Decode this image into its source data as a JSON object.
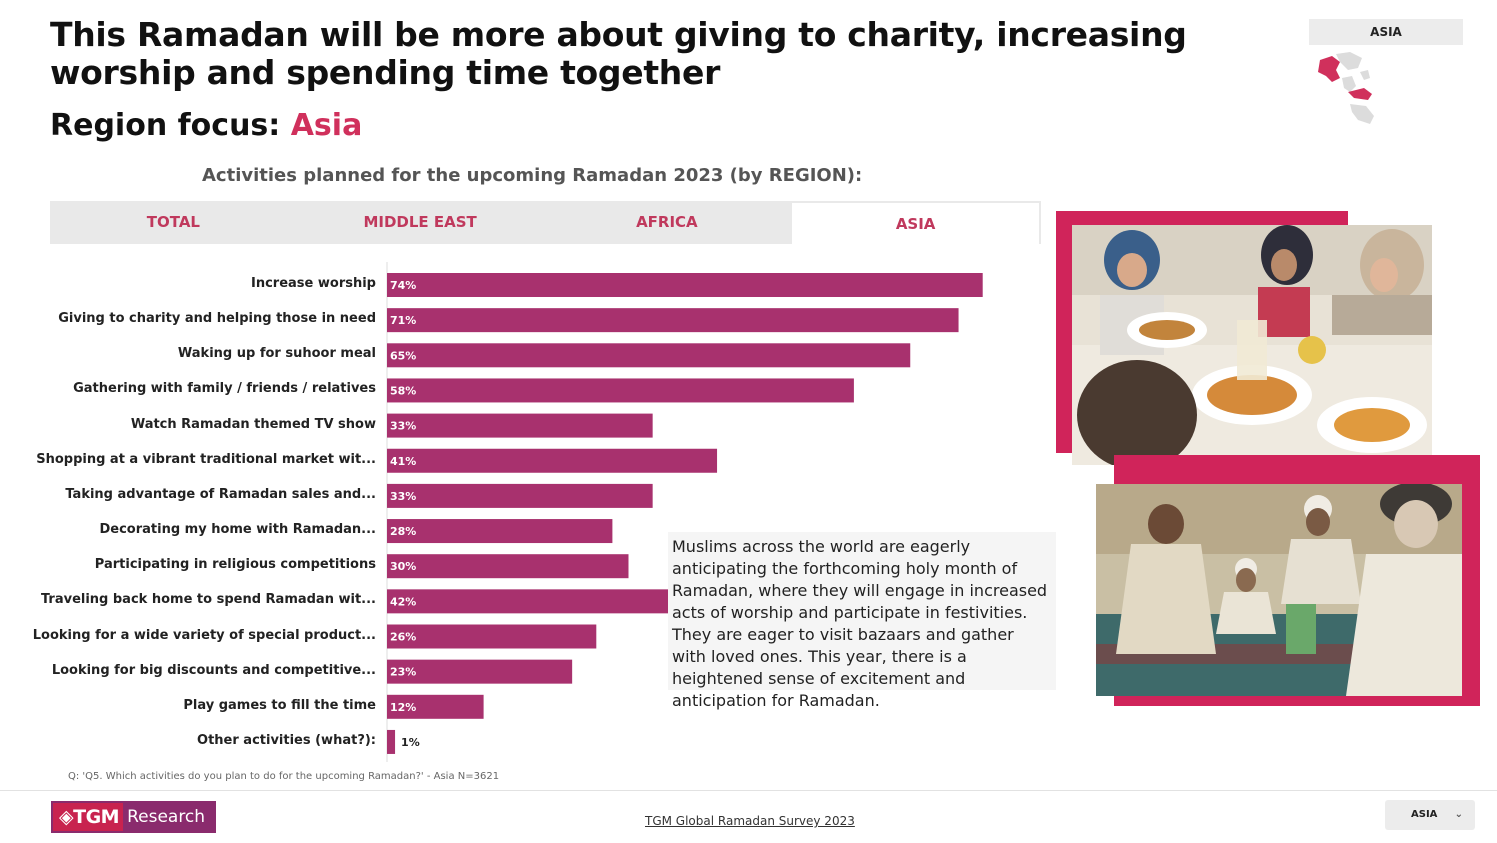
{
  "header": {
    "title": "This Ramadan will be more about giving to charity, increasing worship and spending time together",
    "region_label": "Region focus: ",
    "region_name": "Asia",
    "region_badge": "ASIA"
  },
  "chart_heading": "Activities planned for the upcoming Ramadan 2023 (by REGION):",
  "tabs": [
    {
      "label": "TOTAL",
      "active": false
    },
    {
      "label": "MIDDLE EAST",
      "active": false
    },
    {
      "label": "AFRICA",
      "active": false
    },
    {
      "label": "ASIA",
      "active": true
    }
  ],
  "chart_data": {
    "type": "bar",
    "orientation": "horizontal",
    "categories": [
      "Increase worship",
      "Giving to charity and helping those in need",
      "Waking up for suhoor meal",
      "Gathering with family / friends / relatives",
      "Watch Ramadan themed TV show",
      "Shopping at a vibrant traditional market wit...",
      "Taking advantage of Ramadan sales and...",
      "Decorating my home with Ramadan...",
      "Participating in religious competitions",
      "Traveling back home to spend Ramadan wit...",
      "Looking for a wide variety of special product...",
      "Looking for big discounts and competitive...",
      "Play games to fill the time",
      "Other activities (what?):"
    ],
    "values": [
      74,
      71,
      65,
      58,
      33,
      41,
      33,
      28,
      30,
      42,
      26,
      23,
      12,
      1
    ],
    "value_labels": [
      "74%",
      "71%",
      "65%",
      "58%",
      "33%",
      "41%",
      "33%",
      "28%",
      "30%",
      "42%",
      "26%",
      "23%",
      "12%",
      "1%"
    ],
    "xlim": [
      0,
      100
    ],
    "grid": false,
    "bar_color": "#a8316e"
  },
  "description": "Muslims across the world are eagerly anticipating the forthcoming holy month of Ramadan, where they will engage in increased acts of worship and participate in festivities. They are eager to visit bazaars and gather with loved ones. This year, there is a heightened sense of excitement and anticipation for Ramadan.",
  "footnote": "Q: 'Q5. Which activities do you plan to do for the upcoming Ramadan?' - Asia N=3621",
  "footer": {
    "logo_left": "◈TGM",
    "logo_right": "Research",
    "source": "TGM Global Ramadan Survey 2023",
    "region_select": "ASIA",
    "chevron": "⌄"
  },
  "colors": {
    "accent": "#d0305c",
    "frame": "#d0245a",
    "bar": "#a8316e"
  }
}
